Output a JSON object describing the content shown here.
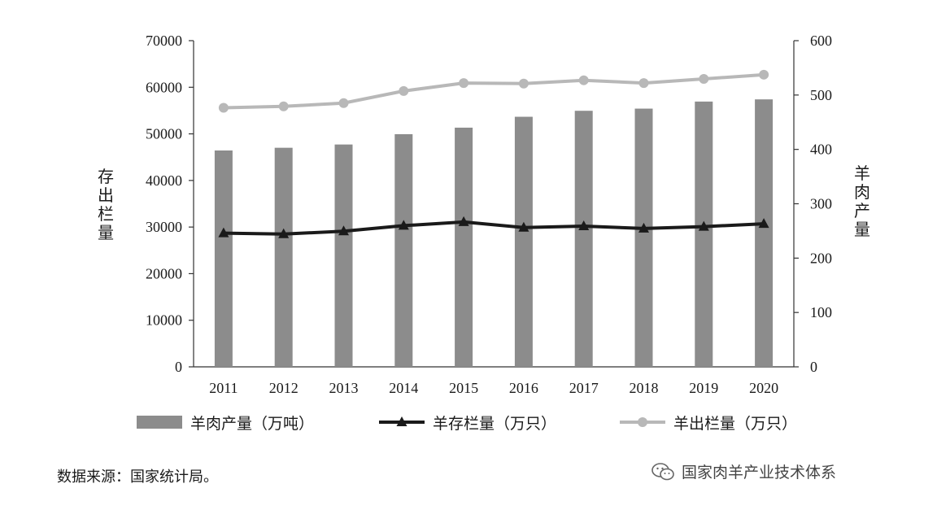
{
  "chart_data": {
    "type": "bar",
    "categories": [
      "2011",
      "2012",
      "2013",
      "2014",
      "2015",
      "2016",
      "2017",
      "2018",
      "2019",
      "2020"
    ],
    "series": [
      {
        "name": "羊肉产量（万吨）",
        "type": "bar",
        "axis": "right",
        "color": "#8c8c8c",
        "values": [
          398,
          403,
          409,
          428,
          440,
          460,
          471,
          475,
          488,
          492
        ]
      },
      {
        "name": "羊存栏量（万只）",
        "type": "line",
        "marker": "triangle",
        "axis": "left",
        "color": "#1a1a1a",
        "values": [
          28700,
          28500,
          29100,
          30300,
          31100,
          29900,
          30200,
          29700,
          30100,
          30700
        ]
      },
      {
        "name": "羊出栏量（万只）",
        "type": "line",
        "marker": "circle",
        "axis": "left",
        "color": "#b8b8b8",
        "values": [
          55600,
          55900,
          56600,
          59200,
          60900,
          60800,
          61500,
          60900,
          61800,
          62700
        ]
      }
    ],
    "ylabel_left": "存出栏量",
    "ylabel_right": "羊肉产量",
    "ylim_left": [
      0,
      70000
    ],
    "yticks_left": [
      "0",
      "10000",
      "20000",
      "30000",
      "40000",
      "50000",
      "60000",
      "70000"
    ],
    "ylim_right": [
      0,
      600
    ],
    "yticks_right": [
      "0",
      "100",
      "200",
      "300",
      "400",
      "500",
      "600"
    ],
    "grid": false,
    "legend_position": "bottom"
  },
  "source_note": "数据来源：国家统计局。",
  "watermark": {
    "text": "国家肉羊产业技术体系",
    "icon": "wechat-icon"
  }
}
